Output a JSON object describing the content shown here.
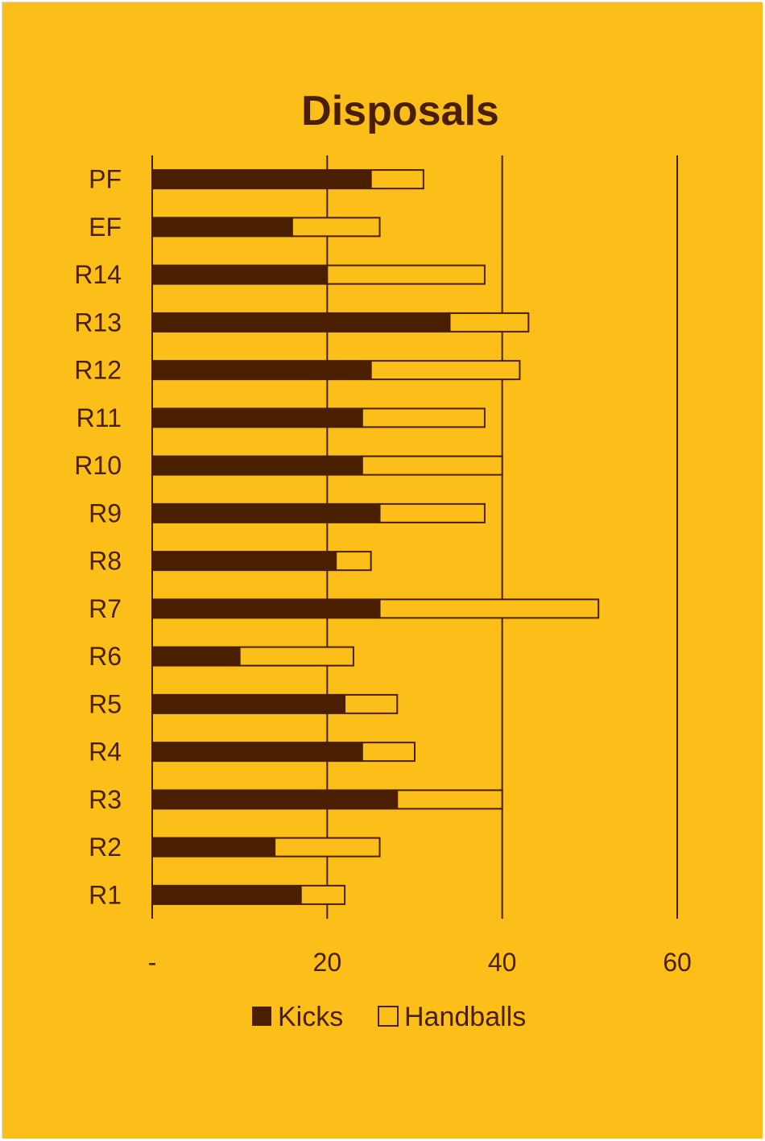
{
  "colors": {
    "background": "#FCBF19",
    "kicks": "#4A1F00",
    "handballs": "#FCBF19",
    "lines": "#4A1F00",
    "text": "#4A1F00"
  },
  "chart_data": {
    "type": "bar",
    "orientation": "horizontal",
    "stacked": true,
    "title": "Disposals",
    "categories": [
      "R1",
      "R2",
      "R3",
      "R4",
      "R5",
      "R6",
      "R7",
      "R8",
      "R9",
      "R10",
      "R11",
      "R12",
      "R13",
      "R14",
      "EF",
      "PF"
    ],
    "series": [
      {
        "name": "Kicks",
        "values": [
          17,
          14,
          28,
          24,
          22,
          10,
          26,
          21,
          26,
          24,
          24,
          25,
          34,
          20,
          16,
          25
        ]
      },
      {
        "name": "Handballs",
        "values": [
          5,
          12,
          12,
          6,
          6,
          13,
          25,
          4,
          12,
          16,
          14,
          17,
          9,
          18,
          10,
          6
        ]
      }
    ],
    "xlim": [
      0,
      60
    ],
    "xticks": [
      0,
      20,
      40,
      60
    ],
    "xtick_labels": [
      "-",
      "20",
      "40",
      "60"
    ],
    "gridlines": "vertical",
    "legend_position": "bottom"
  }
}
